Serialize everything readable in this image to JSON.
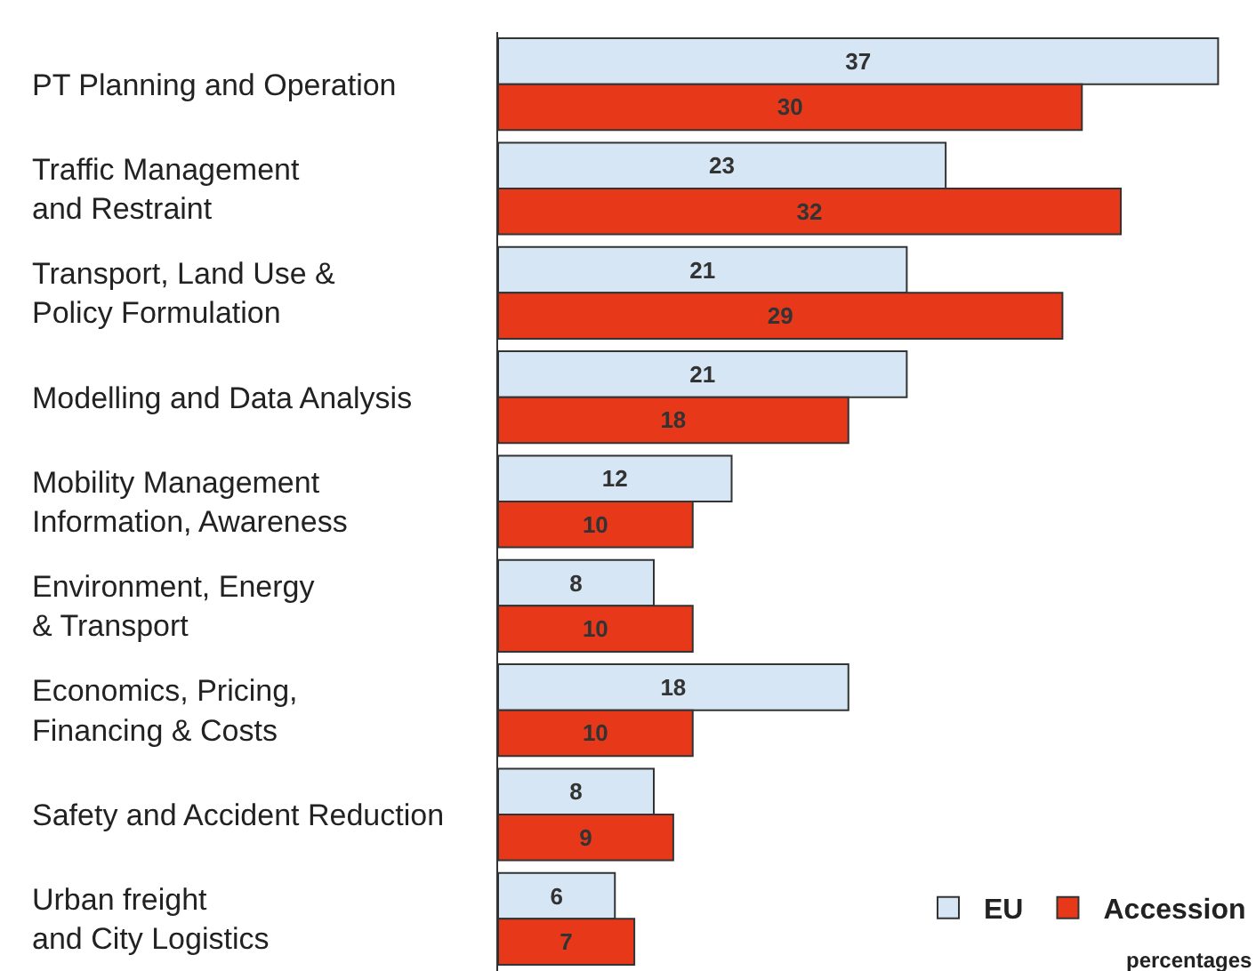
{
  "chart_data": {
    "type": "bar",
    "orientation": "horizontal",
    "categories": [
      "PT Planning and Operation",
      "Traffic Management\nand Restraint",
      "Transport, Land Use &\nPolicy Formulation",
      "Modelling and Data Analysis",
      "Mobility Management\nInformation, Awareness",
      "Environment, Energy\n& Transport",
      "Economics, Pricing,\nFinancing & Costs",
      "Safety and Accident Reduction",
      "Urban freight\nand City Logistics"
    ],
    "series": [
      {
        "name": "EU",
        "color": "#d6e6f4",
        "values": [
          37,
          23,
          21,
          21,
          12,
          8,
          18,
          8,
          6
        ]
      },
      {
        "name": "Accession",
        "color": "#e8381a",
        "values": [
          30,
          32,
          29,
          18,
          10,
          10,
          10,
          9,
          7
        ]
      }
    ],
    "data_labels": true,
    "legend": "bottom right",
    "grid": false,
    "tick_labels": "y",
    "annotations": [
      "percentages"
    ]
  }
}
